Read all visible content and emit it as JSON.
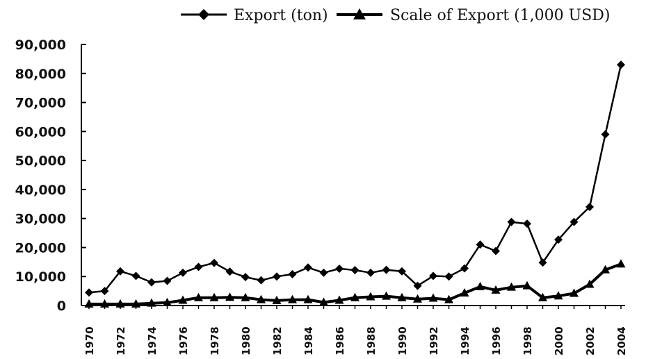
{
  "chart_data": {
    "type": "line",
    "title": "",
    "xlabel": "",
    "ylabel": "",
    "ylim": [
      0,
      90000
    ],
    "y_ticks": [
      0,
      10000,
      20000,
      30000,
      40000,
      50000,
      60000,
      70000,
      80000,
      90000
    ],
    "y_tick_labels": [
      "0",
      "10,000",
      "20,000",
      "30,000",
      "40,000",
      "50,000",
      "60,000",
      "70,000",
      "80,000",
      "90,000"
    ],
    "x_tick_labels": [
      "1970",
      "1972",
      "1974",
      "1976",
      "1978",
      "1980",
      "1982",
      "1984",
      "1986",
      "1988",
      "1990",
      "1992",
      "1994",
      "1996",
      "1998",
      "2000",
      "2002",
      "2004"
    ],
    "x": [
      1970,
      1971,
      1972,
      1973,
      1974,
      1975,
      1976,
      1977,
      1978,
      1979,
      1980,
      1981,
      1982,
      1983,
      1984,
      1985,
      1986,
      1987,
      1988,
      1989,
      1990,
      1991,
      1992,
      1993,
      1994,
      1995,
      1996,
      1997,
      1998,
      1999,
      2000,
      2001,
      2002,
      2003,
      2004
    ],
    "series": [
      {
        "name": "Export (ton)",
        "marker": "diamond",
        "color": "#000000",
        "values": [
          4500,
          5000,
          11800,
          10200,
          8000,
          8500,
          11300,
          13300,
          14700,
          11700,
          9800,
          8700,
          10000,
          10800,
          13100,
          11300,
          12700,
          12200,
          11300,
          12300,
          11800,
          6800,
          10200,
          10000,
          12800,
          21000,
          18800,
          28800,
          28200,
          14800,
          22700,
          28800,
          34000,
          59000,
          83000
        ]
      },
      {
        "name": "Scale of Export (1,000 USD)",
        "marker": "triangle",
        "color": "#000000",
        "values": [
          500,
          500,
          500,
          500,
          800,
          1000,
          1800,
          2700,
          2700,
          2800,
          2700,
          2000,
          1700,
          2000,
          2000,
          1100,
          1800,
          2700,
          3000,
          3200,
          2700,
          2200,
          2500,
          2000,
          4300,
          6500,
          5300,
          6300,
          6800,
          2700,
          3300,
          4200,
          7300,
          12300,
          14300
        ]
      }
    ],
    "legend_position": "top"
  }
}
